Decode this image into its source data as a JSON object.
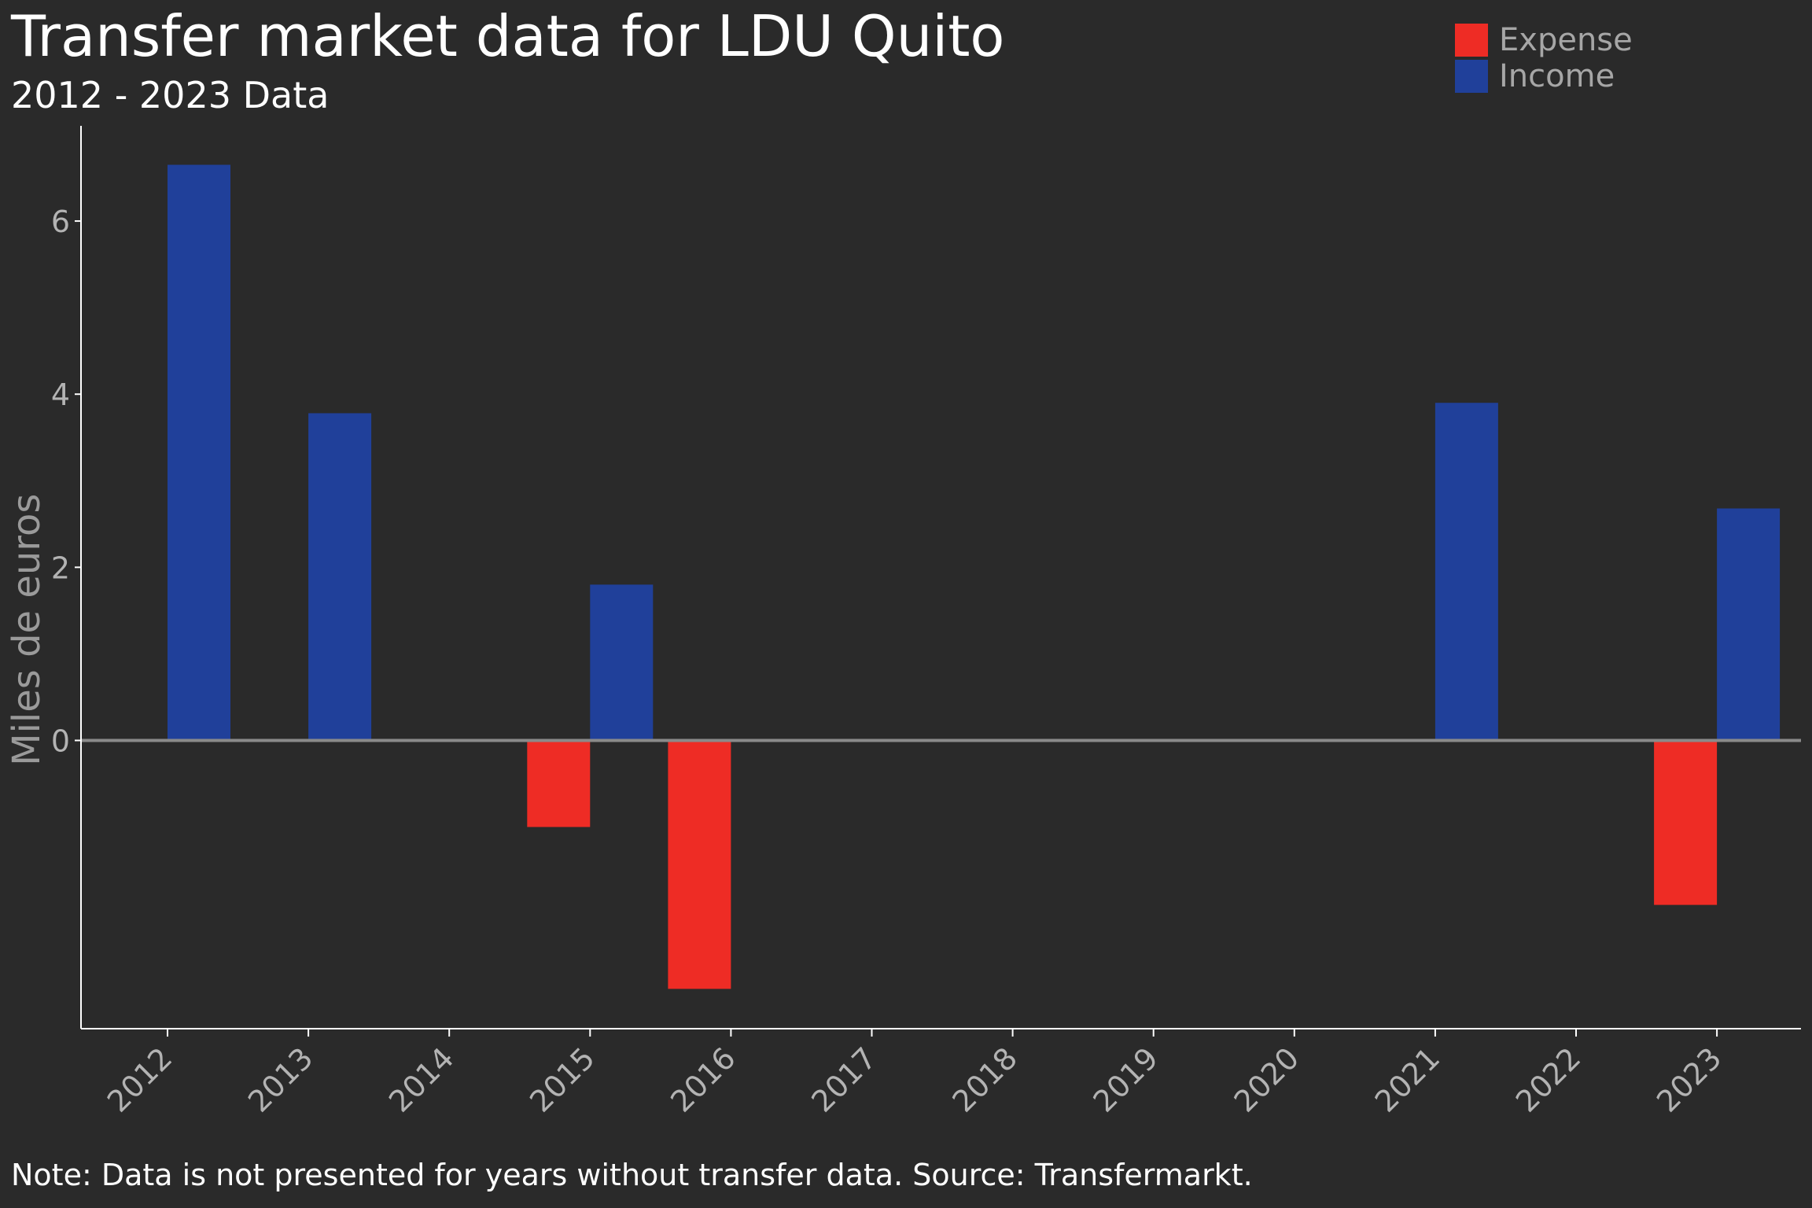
{
  "colors": {
    "expense": "#ee2c25",
    "income": "#20409a",
    "background": "#2a2a2a",
    "axis": "#ffffff",
    "zero_line": "#8a8a8a",
    "tick_text": "#b3b3b3"
  },
  "footer": {
    "note": "Note: Data is not presented for years without transfer data. Source: Transfermarkt."
  },
  "chart_data": {
    "type": "bar",
    "title": "Transfer market data for LDU Quito",
    "subtitle": "2012 - 2023 Data",
    "ylabel": "Miles de euros",
    "xlabel": "",
    "categories": [
      "2012",
      "2013",
      "2014",
      "2015",
      "2016",
      "2017",
      "2018",
      "2019",
      "2020",
      "2021",
      "2022",
      "2023"
    ],
    "series": [
      {
        "name": "Expense",
        "values": [
          0,
          0,
          0,
          -1.0,
          -2.87,
          0,
          0,
          0,
          0,
          0,
          0,
          -1.9
        ]
      },
      {
        "name": "Income",
        "values": [
          6.65,
          3.78,
          0,
          1.8,
          0,
          0,
          0,
          0,
          0,
          3.9,
          0,
          2.68
        ]
      }
    ],
    "yticks": [
      0,
      2,
      4,
      6
    ],
    "ylim": [
      -3.33,
      7.1
    ],
    "legend": "top-right",
    "grid": false
  }
}
